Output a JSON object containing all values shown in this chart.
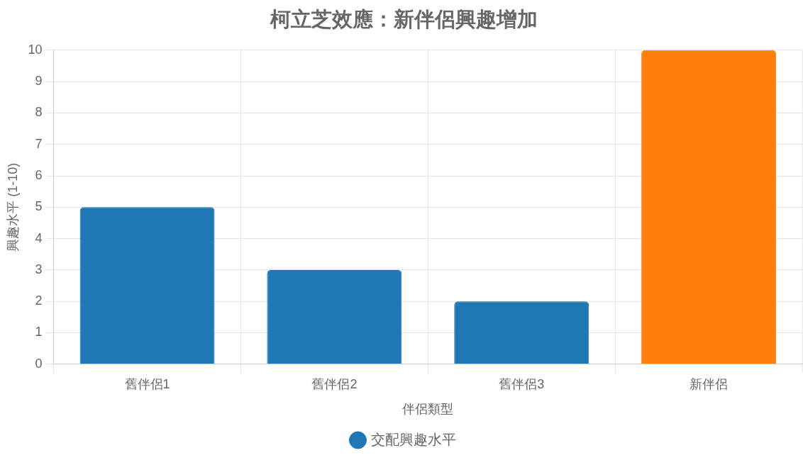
{
  "chart_data": {
    "type": "bar",
    "title": "柯立芝效應：新伴侶興趣增加",
    "xlabel": "伴侶類型",
    "ylabel": "興趣水平 (1-10)",
    "categories": [
      "舊伴侶1",
      "舊伴侶2",
      "舊伴侶3",
      "新伴侶"
    ],
    "series": [
      {
        "name": "交配興趣水平",
        "colors": [
          "#1f77b4",
          "#1f77b4",
          "#1f77b4",
          "#ff7f0e"
        ],
        "values": [
          5,
          3,
          2,
          10
        ]
      }
    ],
    "ylim": [
      0,
      10
    ],
    "yticks": [
      0,
      1,
      2,
      3,
      4,
      5,
      6,
      7,
      8,
      9,
      10
    ],
    "grid": true,
    "legend": "bottom"
  }
}
